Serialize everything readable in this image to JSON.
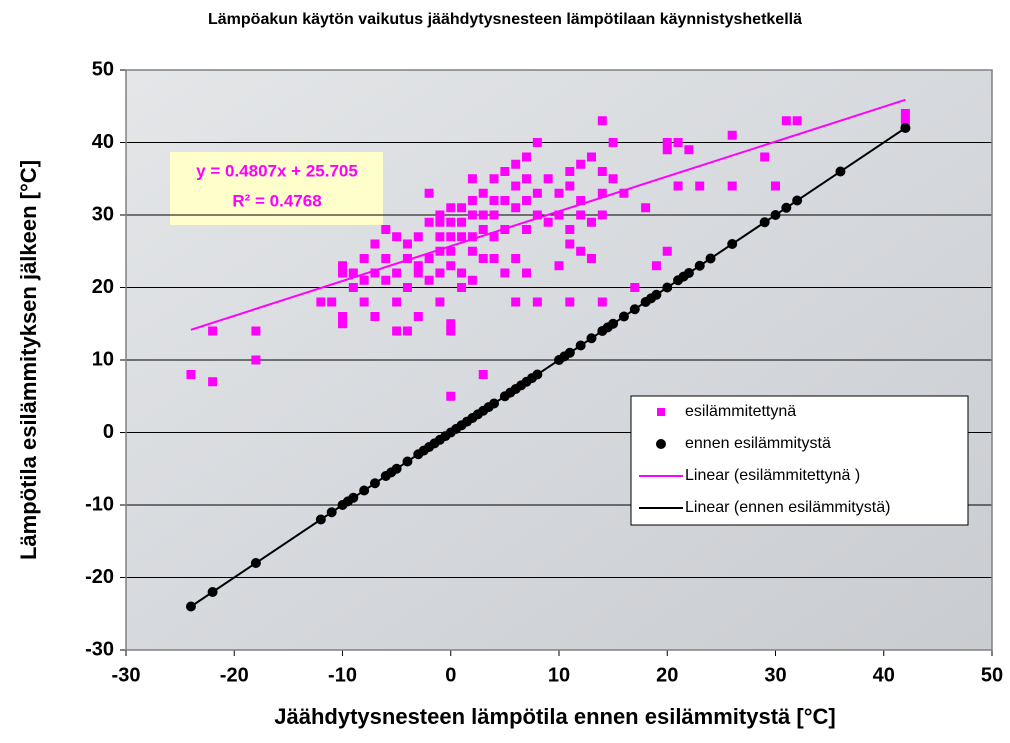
{
  "chart_data": {
    "type": "scatter",
    "title": "Lämpöakun käytön vaikutus jäähdytysnesteen lämpötilaan käynnistyshetkellä",
    "x_label": "Jäähdytysnesteen lämpötila ennen esilämmitystä [°C]",
    "y_label": "Lämpötila esilämmityksen jälkeen [°C]",
    "xlim": [
      -30,
      50
    ],
    "ylim": [
      -30,
      50
    ],
    "xticks": [
      -30,
      -20,
      -10,
      0,
      10,
      20,
      30,
      40,
      50
    ],
    "yticks": [
      -30,
      -20,
      -10,
      0,
      10,
      20,
      30,
      40,
      50
    ],
    "grid": true,
    "legend": "right",
    "annotations": [
      "y = 0.4807x + 25.705",
      "R² = 0.4768"
    ],
    "series": [
      {
        "name": "esilämmitettynä",
        "color": "#ff00ff",
        "marker": "square",
        "x": [
          -24,
          -22,
          -22,
          -18,
          -18,
          -12,
          -11,
          -10,
          -10,
          -10,
          -10,
          -9,
          -9,
          -8,
          -8,
          -7,
          -7,
          -7,
          -6,
          -6,
          -6,
          -5,
          -5,
          -5,
          -5,
          -4,
          -4,
          -4,
          -4,
          -3,
          -3,
          -3,
          -2,
          -2,
          -2,
          -2,
          -1,
          -1,
          -1,
          -1,
          -1,
          0,
          0,
          0,
          0,
          0,
          0,
          0,
          0,
          1,
          1,
          1,
          1,
          1,
          2,
          2,
          2,
          2,
          2,
          3,
          3,
          3,
          3,
          4,
          4,
          4,
          4,
          5,
          5,
          5,
          5,
          6,
          6,
          6,
          6,
          6,
          7,
          7,
          7,
          7,
          7,
          8,
          8,
          8,
          9,
          9,
          10,
          10,
          10,
          11,
          11,
          11,
          11,
          11,
          12,
          12,
          12,
          13,
          13,
          14,
          14,
          14,
          14,
          14,
          15,
          15,
          16,
          17,
          18,
          19,
          20,
          20,
          20,
          21,
          21,
          22,
          23,
          26,
          26,
          29,
          30,
          31,
          32,
          42,
          42,
          3,
          -1,
          2,
          4,
          12,
          8,
          13,
          -3,
          -8
        ],
        "values": [
          8,
          14,
          7,
          14,
          10,
          18,
          18,
          22,
          16,
          15,
          23,
          20,
          22,
          24,
          18,
          26,
          22,
          16,
          28,
          24,
          21,
          27,
          22,
          18,
          14,
          26,
          24,
          20,
          14,
          27,
          22,
          16,
          33,
          29,
          24,
          21,
          29,
          27,
          25,
          22,
          18,
          31,
          29,
          27,
          25,
          23,
          15,
          14,
          5,
          31,
          29,
          27,
          22,
          20,
          32,
          30,
          27,
          25,
          21,
          33,
          30,
          28,
          8,
          35,
          32,
          30,
          24,
          36,
          32,
          28,
          22,
          37,
          34,
          31,
          24,
          18,
          38,
          35,
          32,
          28,
          22,
          40,
          33,
          30,
          35,
          29,
          33,
          30,
          23,
          36,
          34,
          28,
          26,
          18,
          37,
          32,
          30,
          38,
          29,
          43,
          36,
          33,
          30,
          18,
          40,
          35,
          33,
          20,
          31,
          23,
          40,
          39,
          25,
          34,
          40,
          39,
          34,
          41,
          34,
          38,
          34,
          43,
          43,
          43,
          44,
          24,
          30,
          35,
          27,
          25,
          18,
          24,
          23,
          21
        ]
      },
      {
        "name": "ennen esilämmitystä",
        "color": "#000000",
        "marker": "circle",
        "x": [
          -24,
          -22,
          -18,
          -12,
          -11,
          -10,
          -9.5,
          -9,
          -8,
          -7,
          -6,
          -5.5,
          -5,
          -4,
          -3,
          -2.5,
          -2,
          -1.5,
          -1,
          -0.5,
          0,
          0.5,
          1,
          1.5,
          2,
          2.5,
          3,
          3.5,
          4,
          5,
          5.5,
          6,
          6.5,
          7,
          7.5,
          8,
          10,
          10.5,
          11,
          12,
          13,
          14,
          14.5,
          15,
          16,
          17,
          18,
          18.5,
          19,
          20,
          21,
          21.5,
          22,
          23,
          24,
          26,
          29,
          30,
          31,
          32,
          36,
          42
        ],
        "values": [
          -24,
          -22,
          -18,
          -12,
          -11,
          -10,
          -9.5,
          -9,
          -8,
          -7,
          -6,
          -5.5,
          -5,
          -4,
          -3,
          -2.5,
          -2,
          -1.5,
          -1,
          -0.5,
          0,
          0.5,
          1,
          1.5,
          2,
          2.5,
          3,
          3.5,
          4,
          5,
          5.5,
          6,
          6.5,
          7,
          7.5,
          8,
          10,
          10.5,
          11,
          12,
          13,
          14,
          14.5,
          15,
          16,
          17,
          18,
          18.5,
          19,
          20,
          21,
          21.5,
          22,
          23,
          24,
          26,
          29,
          30,
          31,
          32,
          36,
          42
        ]
      },
      {
        "name": "Linear (esilämmitettynä )",
        "color": "#ff00ff",
        "marker": "line",
        "x": [
          -24,
          42
        ],
        "values": [
          14.17,
          45.89
        ]
      },
      {
        "name": "Linear (ennen esilämmitystä)",
        "color": "#000000",
        "marker": "line",
        "x": [
          -24,
          42
        ],
        "values": [
          -24,
          42
        ]
      }
    ]
  }
}
